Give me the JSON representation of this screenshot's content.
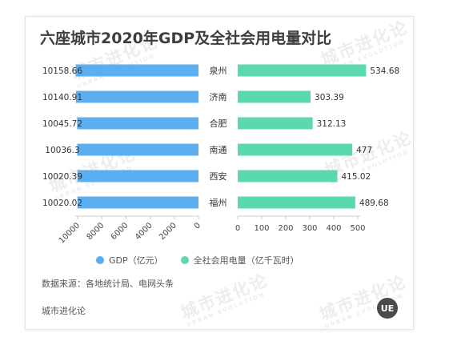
{
  "chart_data": {
    "type": "bar",
    "title": "六座城市2020年GDP及全社会用电量对比",
    "categories": [
      "泉州",
      "济南",
      "合肥",
      "南通",
      "西安",
      "福州"
    ],
    "series": [
      {
        "name": "GDP（亿元）",
        "values": [
          10158.66,
          10140.91,
          10045.72,
          10036.3,
          10020.39,
          10020.02
        ],
        "value_labels": [
          "10158.66",
          "10140.91",
          "10045.72",
          "10036.3",
          "10020.39",
          "10020.02"
        ],
        "color": "#5baeef",
        "axis_range": [
          0,
          10000
        ],
        "axis_direction": "right-to-left",
        "ticks": [
          10000,
          8000,
          6000,
          4000,
          2000,
          0
        ]
      },
      {
        "name": "全社会用电量（亿千瓦时）",
        "values": [
          534.68,
          303.39,
          312.13,
          477,
          415.02,
          489.68
        ],
        "value_labels": [
          "534.68",
          "303.39",
          "312.13",
          "477",
          "415.02",
          "489.68"
        ],
        "color": "#5cd9ac",
        "axis_range": [
          0,
          500
        ],
        "axis_direction": "left-to-right",
        "ticks": [
          0,
          100,
          200,
          300,
          400,
          500
        ]
      }
    ],
    "legend_position": "bottom",
    "grid": false
  },
  "legend": {
    "items": [
      {
        "label": "GDP（亿元）",
        "color": "#5baeef"
      },
      {
        "label": "全社会用电量（亿千瓦时）",
        "color": "#5cd9ac"
      }
    ]
  },
  "source": "数据来源：各地统计局、电网头条",
  "brand": "城市进化论",
  "logo_text": "UE",
  "watermark": {
    "text": "城市进化论",
    "subtext": "URBAN EVOLUTION"
  }
}
